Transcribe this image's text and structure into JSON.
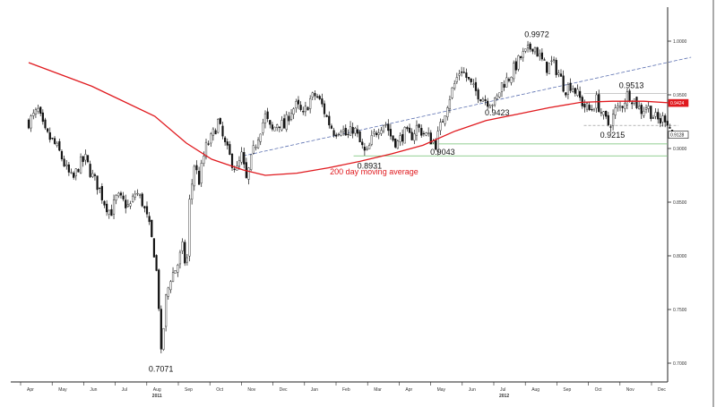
{
  "chart_data": {
    "type": "candlestick",
    "y_axis": {
      "ticks": [
        "1.0000",
        "0.9500",
        "0.9000",
        "0.8500",
        "0.8000",
        "0.7500",
        "0.7000"
      ],
      "tick_values": [
        1.0,
        0.95,
        0.9,
        0.85,
        0.8,
        0.75,
        0.7
      ],
      "ylim": [
        0.68,
        1.02
      ]
    },
    "x_axis": {
      "months": [
        "Apr",
        "May",
        "Jun",
        "Jul",
        "Aug",
        "Sep",
        "Oct",
        "Nov",
        "Dec",
        "Jan",
        "Feb",
        "Mar",
        "Apr",
        "May",
        "Jun",
        "Jul",
        "Aug",
        "Sep",
        "Oct",
        "Nov",
        "Dec"
      ],
      "years": [
        "2011",
        "2012"
      ]
    },
    "annotations": [
      {
        "label": "0.9972",
        "x": 16.0,
        "y": 0.9972
      },
      {
        "label": "0.9513",
        "x": 19.0,
        "y": 0.9513
      },
      {
        "label": "0.9423",
        "x": 14.8,
        "y": 0.9423
      },
      {
        "label": "0.9215",
        "x": 18.4,
        "y": 0.9215
      },
      {
        "label": "0.9043",
        "x": 12.9,
        "y": 0.9043
      },
      {
        "label": "0.8931",
        "x": 10.7,
        "y": 0.8931
      },
      {
        "label": "0.7071",
        "x": 4.2,
        "y": 0.7071
      }
    ],
    "last_price_labels": [
      {
        "label": "0.9424",
        "y": 0.9424,
        "color": "#e0191e"
      },
      {
        "label": "0.9128",
        "y": 0.9128,
        "color": "#111111"
      }
    ],
    "ma_label": "200 day moving average",
    "price_path": [
      [
        0.0,
        0.925
      ],
      [
        0.3,
        0.935
      ],
      [
        0.5,
        0.915
      ],
      [
        0.8,
        0.905
      ],
      [
        1.0,
        0.895
      ],
      [
        1.2,
        0.88
      ],
      [
        1.4,
        0.87
      ],
      [
        1.6,
        0.885
      ],
      [
        1.8,
        0.89
      ],
      [
        2.0,
        0.875
      ],
      [
        2.2,
        0.865
      ],
      [
        2.4,
        0.85
      ],
      [
        2.6,
        0.84
      ],
      [
        2.8,
        0.855
      ],
      [
        3.0,
        0.85
      ],
      [
        3.2,
        0.845
      ],
      [
        3.4,
        0.86
      ],
      [
        3.6,
        0.85
      ],
      [
        3.8,
        0.83
      ],
      [
        4.0,
        0.8
      ],
      [
        4.1,
        0.77
      ],
      [
        4.2,
        0.7071
      ],
      [
        4.35,
        0.76
      ],
      [
        4.5,
        0.78
      ],
      [
        4.7,
        0.79
      ],
      [
        4.9,
        0.81
      ],
      [
        5.0,
        0.78
      ],
      [
        5.1,
        0.85
      ],
      [
        5.25,
        0.885
      ],
      [
        5.4,
        0.87
      ],
      [
        5.6,
        0.9
      ],
      [
        5.8,
        0.91
      ],
      [
        6.0,
        0.925
      ],
      [
        6.2,
        0.905
      ],
      [
        6.4,
        0.89
      ],
      [
        6.6,
        0.88
      ],
      [
        6.75,
        0.8931
      ],
      [
        6.9,
        0.87
      ],
      [
        7.1,
        0.895
      ],
      [
        7.3,
        0.915
      ],
      [
        7.5,
        0.93
      ],
      [
        7.7,
        0.915
      ],
      [
        7.9,
        0.925
      ],
      [
        8.1,
        0.92
      ],
      [
        8.3,
        0.935
      ],
      [
        8.5,
        0.94
      ],
      [
        8.7,
        0.93
      ],
      [
        8.9,
        0.945
      ],
      [
        9.1,
        0.95
      ],
      [
        9.3,
        0.94
      ],
      [
        9.5,
        0.925
      ],
      [
        9.7,
        0.915
      ],
      [
        9.9,
        0.92
      ],
      [
        10.1,
        0.91
      ],
      [
        10.3,
        0.92
      ],
      [
        10.5,
        0.905
      ],
      [
        10.7,
        0.8931
      ],
      [
        10.9,
        0.91
      ],
      [
        11.1,
        0.92
      ],
      [
        11.3,
        0.925
      ],
      [
        11.5,
        0.91
      ],
      [
        11.7,
        0.905
      ],
      [
        11.9,
        0.915
      ],
      [
        12.1,
        0.91
      ],
      [
        12.3,
        0.92
      ],
      [
        12.5,
        0.915
      ],
      [
        12.7,
        0.91
      ],
      [
        12.9,
        0.9043
      ],
      [
        13.1,
        0.925
      ],
      [
        13.3,
        0.945
      ],
      [
        13.5,
        0.96
      ],
      [
        13.7,
        0.975
      ],
      [
        13.9,
        0.965
      ],
      [
        14.1,
        0.955
      ],
      [
        14.3,
        0.95
      ],
      [
        14.5,
        0.945
      ],
      [
        14.8,
        0.9423
      ],
      [
        15.0,
        0.96
      ],
      [
        15.2,
        0.965
      ],
      [
        15.4,
        0.975
      ],
      [
        15.6,
        0.985
      ],
      [
        15.8,
        0.99
      ],
      [
        16.0,
        0.9972
      ],
      [
        16.2,
        0.985
      ],
      [
        16.4,
        0.975
      ],
      [
        16.6,
        0.98
      ],
      [
        16.8,
        0.97
      ],
      [
        17.0,
        0.955
      ],
      [
        17.2,
        0.96
      ],
      [
        17.4,
        0.95
      ],
      [
        17.6,
        0.94
      ],
      [
        17.8,
        0.935
      ],
      [
        18.0,
        0.945
      ],
      [
        18.2,
        0.93
      ],
      [
        18.4,
        0.9215
      ],
      [
        18.6,
        0.935
      ],
      [
        18.8,
        0.94
      ],
      [
        19.0,
        0.9513
      ],
      [
        19.2,
        0.945
      ],
      [
        19.4,
        0.935
      ],
      [
        19.6,
        0.94
      ],
      [
        19.8,
        0.93
      ],
      [
        20.0,
        0.925
      ],
      [
        20.2,
        0.93
      ],
      [
        20.4,
        0.9128
      ]
    ],
    "ma_path": [
      [
        0.0,
        0.98
      ],
      [
        2.0,
        0.958
      ],
      [
        4.0,
        0.93
      ],
      [
        5.0,
        0.905
      ],
      [
        5.8,
        0.89
      ],
      [
        6.8,
        0.88
      ],
      [
        7.5,
        0.875
      ],
      [
        8.5,
        0.877
      ],
      [
        9.5,
        0.882
      ],
      [
        10.5,
        0.888
      ],
      [
        11.5,
        0.895
      ],
      [
        12.5,
        0.903
      ],
      [
        13.5,
        0.916
      ],
      [
        14.5,
        0.926
      ],
      [
        15.5,
        0.932
      ],
      [
        16.5,
        0.938
      ],
      [
        17.5,
        0.943
      ],
      [
        18.5,
        0.944
      ],
      [
        19.5,
        0.944
      ],
      [
        20.4,
        0.9424
      ]
    ],
    "trendline": [
      [
        6.8,
        0.8931
      ],
      [
        21.0,
        0.985
      ]
    ],
    "support_levels": [
      0.9043,
      0.8931
    ],
    "resistance_levels": [
      0.9513,
      0.9215
    ]
  }
}
